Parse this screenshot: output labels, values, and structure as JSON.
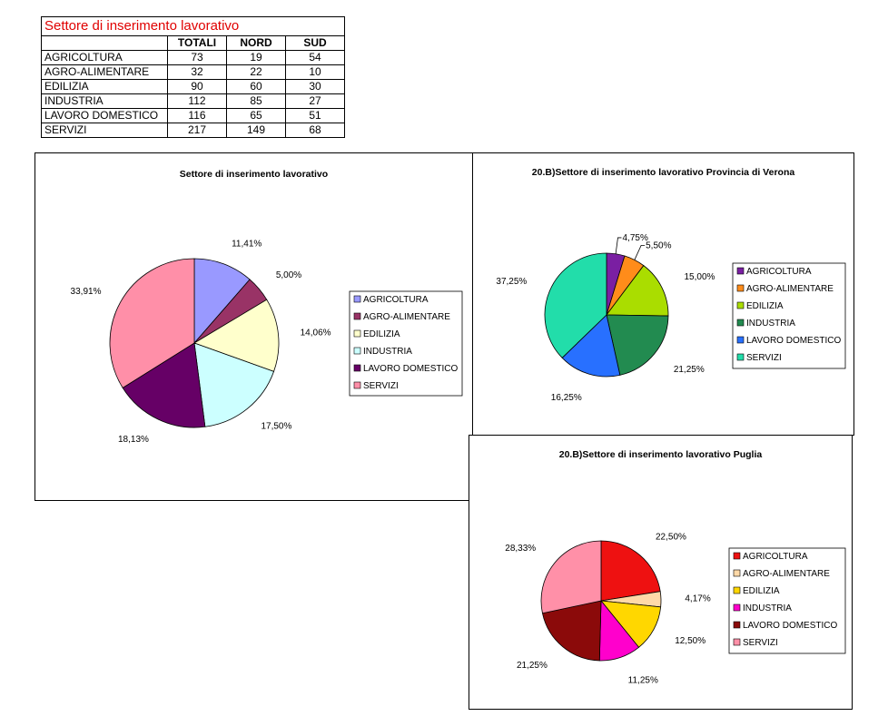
{
  "table": {
    "title": "Settore di inserimento lavorativo",
    "headers": [
      "",
      "TOTALI",
      "NORD",
      "SUD"
    ],
    "rows": [
      [
        "AGRICOLTURA",
        "73",
        "19",
        "54"
      ],
      [
        "AGRO-ALIMENTARE",
        "32",
        "22",
        "10"
      ],
      [
        "EDILIZIA",
        "90",
        "60",
        "30"
      ],
      [
        "INDUSTRIA",
        "112",
        "85",
        "27"
      ],
      [
        "LAVORO DOMESTICO",
        "116",
        "65",
        "51"
      ],
      [
        "SERVIZI",
        "217",
        "149",
        "68"
      ]
    ]
  },
  "chart_data": [
    {
      "type": "pie",
      "title": "Settore di inserimento lavorativo",
      "categories": [
        "AGRICOLTURA",
        "AGRO-ALIMENTARE",
        "EDILIZIA",
        "INDUSTRIA",
        "LAVORO DOMESTICO",
        "SERVIZI"
      ],
      "values": [
        11.41,
        5.0,
        14.06,
        17.5,
        18.13,
        33.91
      ],
      "labels": [
        "11,41%",
        "5,00%",
        "14,06%",
        "17,50%",
        "18,13%",
        "33,91%"
      ],
      "colors": [
        "#9999ff",
        "#993366",
        "#ffffcc",
        "#ccffff",
        "#660066",
        "#ff8fa8"
      ],
      "legend": "right"
    },
    {
      "type": "pie",
      "title": "20.B)Settore di inserimento lavorativo Provincia di Verona",
      "categories": [
        "AGRICOLTURA",
        "AGRO-ALIMENTARE",
        "EDILIZIA",
        "INDUSTRIA",
        "LAVORO DOMESTICO",
        "SERVIZI"
      ],
      "values": [
        4.75,
        5.5,
        15.0,
        21.25,
        16.25,
        37.25
      ],
      "labels": [
        "4,75%",
        "5,50%",
        "15,00%",
        "21,25%",
        "16,25%",
        "37,25%"
      ],
      "colors": [
        "#7a1fa2",
        "#ff8c1a",
        "#aadd00",
        "#228b50",
        "#2870ff",
        "#22ddaa"
      ],
      "legend": "right"
    },
    {
      "type": "pie",
      "title": "20.B)Settore di inserimento lavorativo Puglia",
      "categories": [
        "AGRICOLTURA",
        "AGRO-ALIMENTARE",
        "EDILIZIA",
        "INDUSTRIA",
        "LAVORO DOMESTICO",
        "SERVIZI"
      ],
      "values": [
        22.5,
        4.17,
        12.5,
        11.25,
        21.25,
        28.33
      ],
      "labels": [
        "22,50%",
        "4,17%",
        "12,50%",
        "11,25%",
        "21,25%",
        "28,33%"
      ],
      "colors": [
        "#ee1111",
        "#ffd9a8",
        "#ffd700",
        "#ff00cc",
        "#8b0a0a",
        "#ff90a8"
      ],
      "legend": "right"
    }
  ]
}
